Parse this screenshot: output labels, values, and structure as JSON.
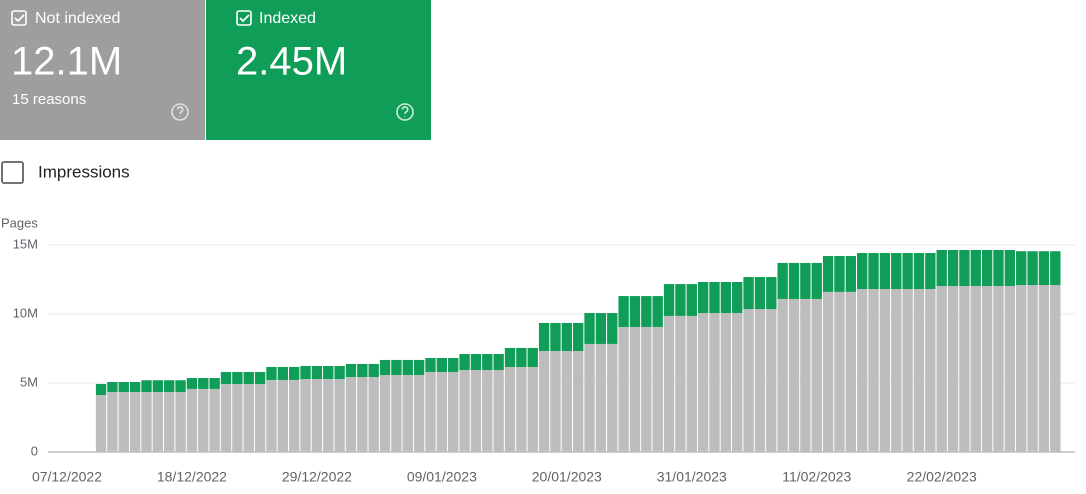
{
  "cards": [
    {
      "value": "12.1M",
      "note": "15 reasons"
    },
    {
      "value": "2.45M"
    }
  ],
  "toggle": "Impressions",
  "chart_data": {
    "type": "bar",
    "stacked": true,
    "y_label": "Pages",
    "categories": [
      "07/12/2022",
      null,
      null,
      null,
      null,
      null,
      null,
      null,
      null,
      null,
      null,
      "18/12/2022",
      null,
      null,
      null,
      null,
      null,
      null,
      null,
      null,
      null,
      null,
      "29/12/2022",
      null,
      null,
      null,
      null,
      null,
      null,
      null,
      null,
      null,
      null,
      "09/01/2023",
      null,
      null,
      null,
      null,
      null,
      null,
      null,
      null,
      null,
      null,
      "20/01/2023",
      null,
      null,
      null,
      null,
      null,
      null,
      null,
      null,
      null,
      null,
      "31/01/2023",
      null,
      null,
      null,
      null,
      null,
      null,
      null,
      null,
      null,
      null,
      "11/02/2023",
      null,
      null,
      null,
      null,
      null,
      null,
      null,
      null,
      null,
      null,
      "22/02/2023",
      null,
      null,
      null,
      null,
      null,
      null,
      null,
      null,
      null,
      null
    ],
    "series": [
      {
        "name": "Not indexed",
        "color": "#bdbdbd",
        "values": [
          null,
          null,
          null,
          4130000,
          4350000,
          4350000,
          4350000,
          4350000,
          4350000,
          4350000,
          4350000,
          4570000,
          4570000,
          4570000,
          4930000,
          4930000,
          4930000,
          4930000,
          5220000,
          5220000,
          5220000,
          5290000,
          5290000,
          5290000,
          5290000,
          5430000,
          5430000,
          5430000,
          5580000,
          5580000,
          5580000,
          5580000,
          5800000,
          5800000,
          5800000,
          5940000,
          5940000,
          5940000,
          5940000,
          6160000,
          6160000,
          6160000,
          7320000,
          7320000,
          7320000,
          7320000,
          7830000,
          7830000,
          7830000,
          9060000,
          9060000,
          9060000,
          9060000,
          9860000,
          9860000,
          9860000,
          10070000,
          10070000,
          10070000,
          10070000,
          10360000,
          10360000,
          10360000,
          11090000,
          11090000,
          11090000,
          11090000,
          11600000,
          11600000,
          11600000,
          11810000,
          11810000,
          11810000,
          11810000,
          11810000,
          11810000,
          11810000,
          12030000,
          12030000,
          12030000,
          12030000,
          12030000,
          12030000,
          12030000,
          12100000,
          12100000,
          12100000,
          12100000
        ]
      },
      {
        "name": "Indexed",
        "color": "#0f9d58",
        "values": [
          null,
          null,
          null,
          800000,
          720000,
          720000,
          720000,
          850000,
          850000,
          850000,
          850000,
          790000,
          790000,
          790000,
          870000,
          870000,
          870000,
          870000,
          940000,
          940000,
          940000,
          940000,
          940000,
          940000,
          940000,
          950000,
          950000,
          950000,
          1090000,
          1090000,
          1090000,
          1090000,
          1010000,
          1010000,
          1010000,
          1160000,
          1160000,
          1160000,
          1160000,
          1380000,
          1380000,
          1380000,
          2030000,
          2030000,
          2030000,
          2030000,
          2240000,
          2240000,
          2240000,
          2240000,
          2240000,
          2240000,
          2240000,
          2310000,
          2310000,
          2310000,
          2250000,
          2250000,
          2250000,
          2250000,
          2320000,
          2320000,
          2320000,
          2610000,
          2610000,
          2610000,
          2610000,
          2600000,
          2600000,
          2600000,
          2610000,
          2610000,
          2610000,
          2610000,
          2610000,
          2610000,
          2610000,
          2610000,
          2610000,
          2610000,
          2610000,
          2610000,
          2610000,
          2610000,
          2450000,
          2450000,
          2450000,
          2450000
        ]
      }
    ],
    "ylim": [
      0,
      15000000
    ],
    "yticks": [
      0,
      {
        "value": 5000000,
        "label": "5M"
      },
      {
        "value": 10000000,
        "label": "10M"
      },
      {
        "value": 15000000,
        "label": "15M"
      }
    ],
    "grid": true
  }
}
